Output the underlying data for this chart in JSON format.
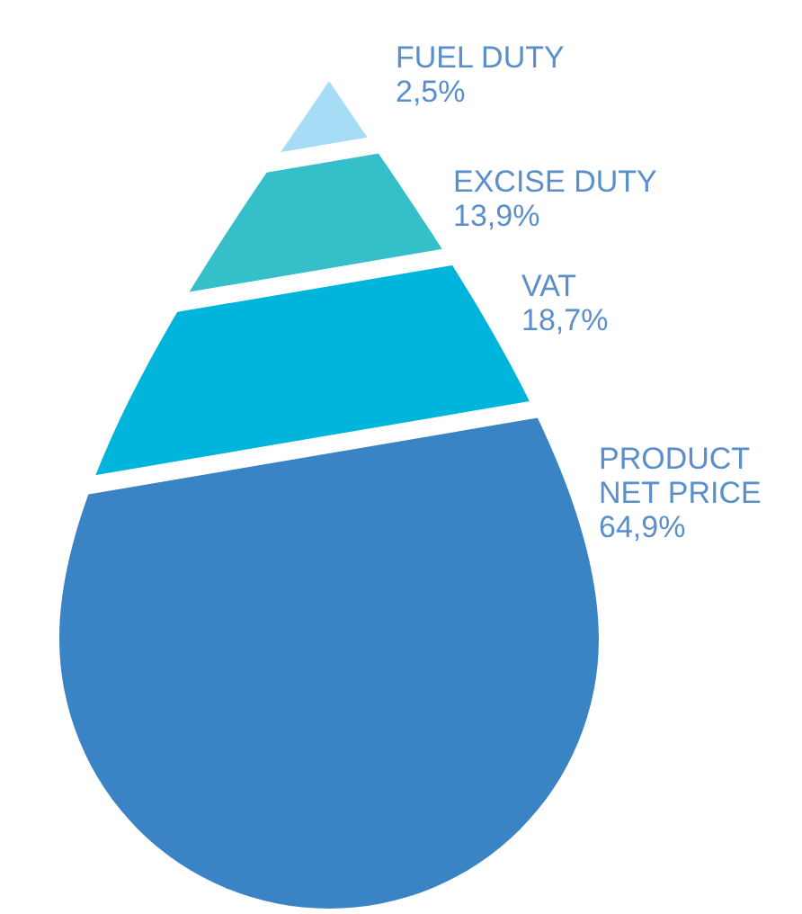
{
  "chart_data": {
    "type": "other",
    "categories": [
      "FUEL DUTY",
      "EXCISE DUTY",
      "VAT",
      "PRODUCT\nNET PRICE"
    ],
    "values": [
      2.5,
      13.9,
      18.7,
      64.9
    ],
    "value_labels": [
      "2,5%",
      "13,9%",
      "18,7%",
      "64,9%"
    ],
    "colors": [
      "#a6dcf5",
      "#35bfc9",
      "#00b5dc",
      "#3a83c4"
    ]
  }
}
